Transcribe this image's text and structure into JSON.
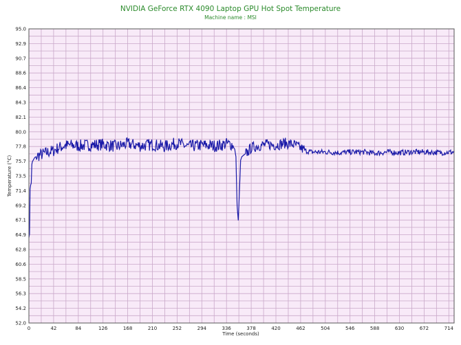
{
  "chart_data": {
    "type": "line",
    "title": "NVIDIA GeForce RTX 4090 Laptop GPU Hot Spot Temperature",
    "subtitle": "Machine name : MSI",
    "xlabel": "Time (seconds)",
    "ylabel": "Temperature (°C)",
    "xlim": [
      0,
      723
    ],
    "ylim": [
      52.0,
      95.0
    ],
    "grid": true,
    "x_ticks": [
      0,
      42,
      84,
      126,
      168,
      210,
      252,
      294,
      336,
      378,
      420,
      462,
      504,
      546,
      588,
      630,
      672,
      714
    ],
    "y_ticks": [
      "52.0",
      "54.2",
      "56.3",
      "58.5",
      "60.6",
      "62.8",
      "64.9",
      "67.1",
      "69.2",
      "71.4",
      "73.5",
      "75.7",
      "77.8",
      "80.0",
      "82.1",
      "84.3",
      "86.4",
      "88.6",
      "90.7",
      "92.9",
      "95.0"
    ],
    "colors": {
      "line": "#1a1aa8",
      "plot_bg": "#f8eaf8",
      "grid": "#c9a8c9",
      "title": "#2a8a2a"
    },
    "series": [
      {
        "x": [
          0,
          1,
          2,
          3,
          4,
          5,
          6,
          8,
          10,
          14,
          20,
          30,
          42,
          50,
          60,
          70,
          84,
          100,
          126,
          150,
          168,
          190,
          210,
          230,
          252,
          270,
          294,
          320,
          336,
          345,
          350,
          352,
          354,
          356,
          358,
          360,
          362,
          366,
          372,
          378,
          390,
          405,
          420,
          435,
          450,
          462,
          470,
          480,
          504,
          530,
          546,
          570,
          588,
          610,
          630,
          650,
          672,
          700,
          723
        ],
        "values": [
          64.5,
          65.0,
          71.6,
          72.2,
          72.4,
          75.2,
          75.6,
          75.9,
          76.2,
          76.4,
          76.6,
          76.9,
          77.2,
          77.6,
          77.9,
          78.0,
          77.9,
          78.0,
          78.1,
          77.8,
          78.2,
          77.9,
          78.1,
          77.8,
          78.3,
          77.8,
          78.0,
          77.9,
          78.2,
          78.1,
          77.4,
          76.3,
          69.2,
          67.0,
          71.4,
          75.8,
          76.3,
          76.6,
          77.0,
          77.6,
          77.9,
          78.1,
          78.0,
          78.3,
          78.1,
          77.6,
          77.2,
          77.0,
          77.0,
          76.9,
          77.0,
          77.0,
          76.8,
          77.0,
          76.9,
          77.0,
          77.0,
          76.9,
          77.0
        ]
      }
    ]
  }
}
